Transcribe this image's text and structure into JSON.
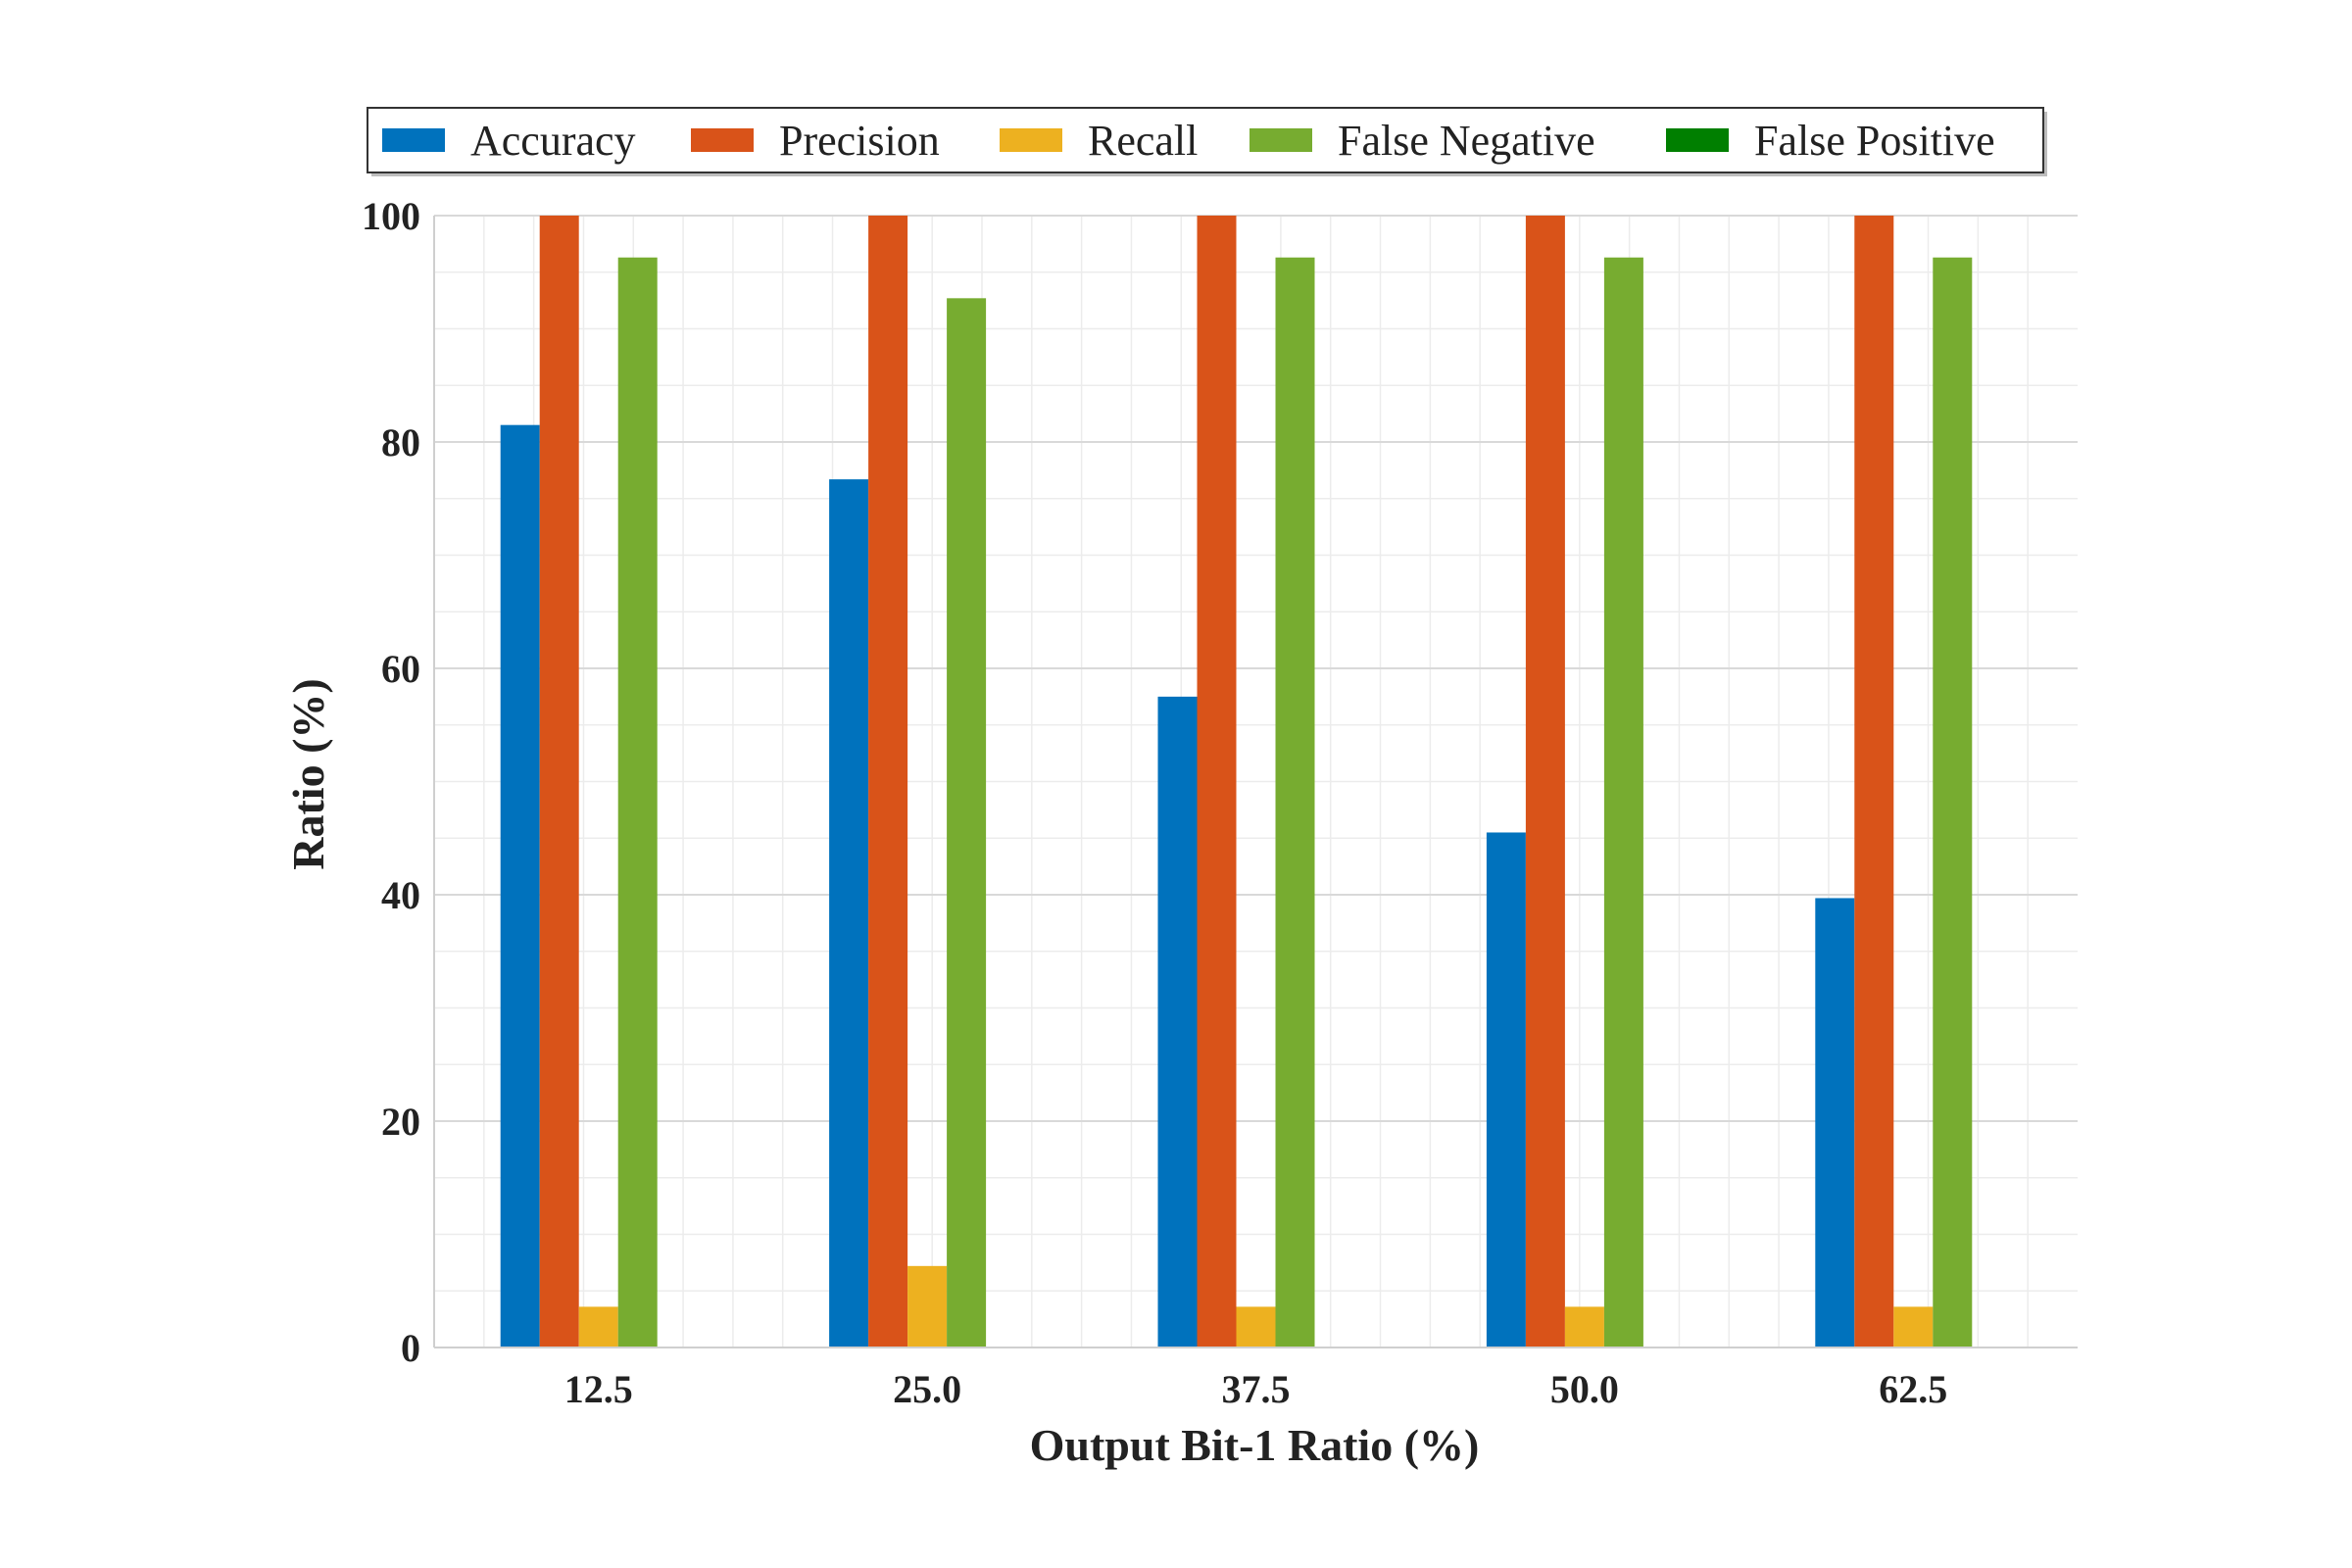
{
  "chart_data": {
    "type": "bar",
    "title": "",
    "xlabel": "Output Bit-1 Ratio (%)",
    "ylabel": "Ratio (%)",
    "ylim": [
      0,
      100
    ],
    "yticks": [
      "0",
      "20",
      "40",
      "60",
      "80",
      "100"
    ],
    "categories": [
      "12.5",
      "25.0",
      "37.5",
      "50.0",
      "62.5"
    ],
    "grid": true,
    "legend_position": "top",
    "series": [
      {
        "name": "Accuracy",
        "color": "#0072BD",
        "values": [
          81.5,
          76.7,
          57.5,
          45.5,
          39.7
        ]
      },
      {
        "name": "Precision",
        "color": "#D95319",
        "values": [
          100,
          100,
          100,
          100,
          100
        ]
      },
      {
        "name": "Recall",
        "color": "#EDB120",
        "values": [
          3.6,
          7.2,
          3.6,
          3.6,
          3.6
        ]
      },
      {
        "name": "False Negative",
        "color": "#77AC30",
        "values": [
          96.3,
          92.7,
          96.3,
          96.3,
          96.3
        ]
      },
      {
        "name": "False Positive",
        "color": "#007F00",
        "values": [
          0,
          0,
          0,
          0,
          0
        ]
      }
    ]
  }
}
